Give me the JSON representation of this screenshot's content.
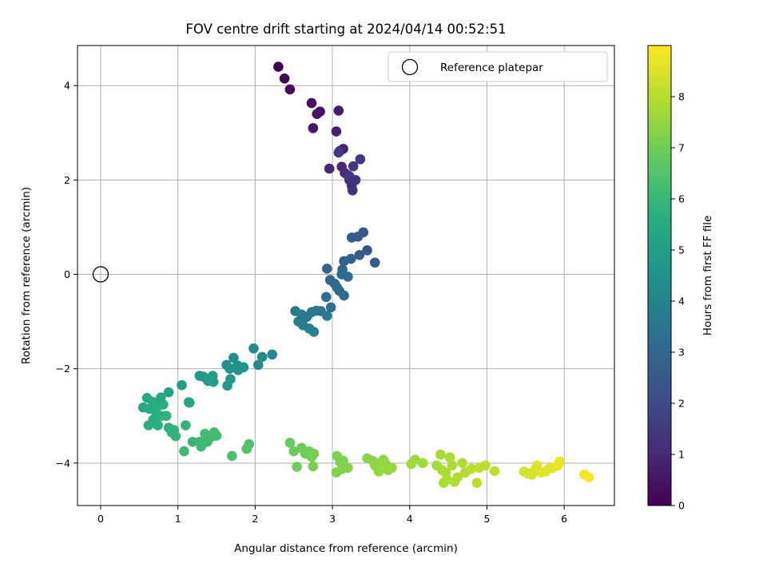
{
  "chart_data": {
    "type": "scatter",
    "title": "FOV centre drift starting at 2024/04/14 00:52:51",
    "xlabel": "Angular distance from reference (arcmin)",
    "ylabel": "Rotation from reference (arcmin)",
    "xlim": [
      -0.3,
      6.65
    ],
    "ylim": [
      -4.9,
      4.85
    ],
    "xticks": [
      0,
      1,
      2,
      3,
      4,
      5,
      6
    ],
    "yticks": [
      -4,
      -2,
      0,
      2,
      4
    ],
    "xtick_labels": [
      "0",
      "1",
      "2",
      "3",
      "4",
      "5",
      "6"
    ],
    "ytick_labels": [
      "−4",
      "−2",
      "0",
      "2",
      "4"
    ],
    "grid": true,
    "legend": {
      "placement": "top-right",
      "entries": [
        "Reference platepar"
      ]
    },
    "reference_point": {
      "x": 0,
      "y": 0,
      "label": "Reference platepar"
    },
    "colorbar": {
      "label": "Hours from first FF file",
      "colormap": "viridis",
      "range": [
        0,
        9
      ],
      "ticks": [
        0,
        1,
        2,
        3,
        4,
        5,
        6,
        7,
        8
      ],
      "tick_labels": [
        "0",
        "1",
        "2",
        "3",
        "4",
        "5",
        "6",
        "7",
        "8"
      ]
    },
    "series": [
      {
        "color_value": "hours",
        "points": [
          [
            2.3,
            4.4,
            0.0
          ],
          [
            2.38,
            4.15,
            0.1
          ],
          [
            2.45,
            3.92,
            0.2
          ],
          [
            2.73,
            3.63,
            0.35
          ],
          [
            2.8,
            3.4,
            0.45
          ],
          [
            2.84,
            3.45,
            0.5
          ],
          [
            2.75,
            3.1,
            0.6
          ],
          [
            3.08,
            3.47,
            0.7
          ],
          [
            3.05,
            3.03,
            0.8
          ],
          [
            3.1,
            2.62,
            0.9
          ],
          [
            3.14,
            2.66,
            0.95
          ],
          [
            2.96,
            2.24,
            1.0
          ],
          [
            3.12,
            2.28,
            1.05
          ],
          [
            3.16,
            2.15,
            1.1
          ],
          [
            3.2,
            2.1,
            1.15
          ],
          [
            3.22,
            2.0,
            1.2
          ],
          [
            3.25,
            1.88,
            1.25
          ],
          [
            3.26,
            1.78,
            1.3
          ],
          [
            3.3,
            2.0,
            1.35
          ],
          [
            3.27,
            2.29,
            1.4
          ],
          [
            3.36,
            2.44,
            1.45
          ],
          [
            3.22,
            2.08,
            1.5
          ],
          [
            3.08,
            2.58,
            1.55
          ],
          [
            3.45,
            0.51,
            2.4
          ],
          [
            3.4,
            0.89,
            2.5
          ],
          [
            3.33,
            0.8,
            2.55
          ],
          [
            3.25,
            0.78,
            2.6
          ],
          [
            3.35,
            0.41,
            2.65
          ],
          [
            3.55,
            0.25,
            2.7
          ],
          [
            3.15,
            0.28,
            2.75
          ],
          [
            3.24,
            0.33,
            2.8
          ],
          [
            3.13,
            0.1,
            2.85
          ],
          [
            2.93,
            0.12,
            2.9
          ],
          [
            2.97,
            -0.12,
            2.95
          ],
          [
            3.03,
            -0.2,
            3.0
          ],
          [
            3.06,
            -0.28,
            3.05
          ],
          [
            3.09,
            -0.35,
            3.1
          ],
          [
            3.15,
            -0.45,
            3.15
          ],
          [
            3.12,
            0.0,
            3.2
          ],
          [
            3.2,
            -0.05,
            3.25
          ],
          [
            2.92,
            -0.48,
            3.3
          ],
          [
            2.98,
            -0.7,
            3.4
          ],
          [
            2.85,
            -0.78,
            3.5
          ],
          [
            2.79,
            -0.77,
            3.55
          ],
          [
            2.73,
            -0.8,
            3.6
          ],
          [
            2.67,
            -0.9,
            3.65
          ],
          [
            2.93,
            -0.88,
            3.7
          ],
          [
            2.52,
            -0.78,
            3.75
          ],
          [
            2.6,
            -0.85,
            3.8
          ],
          [
            2.56,
            -1.0,
            3.85
          ],
          [
            2.62,
            -1.08,
            3.9
          ],
          [
            2.7,
            -1.15,
            3.95
          ],
          [
            2.76,
            -1.22,
            4.0
          ],
          [
            2.22,
            -1.7,
            4.2
          ],
          [
            2.09,
            -1.75,
            4.25
          ],
          [
            1.98,
            -1.57,
            4.3
          ],
          [
            2.04,
            -1.92,
            4.35
          ],
          [
            1.72,
            -1.77,
            4.45
          ],
          [
            1.77,
            -1.93,
            4.5
          ],
          [
            1.63,
            -1.92,
            4.55
          ],
          [
            1.67,
            -2.0,
            4.6
          ],
          [
            1.85,
            -1.97,
            4.65
          ],
          [
            1.78,
            -2.03,
            4.7
          ],
          [
            1.68,
            -2.22,
            4.75
          ],
          [
            1.64,
            -2.36,
            4.8
          ],
          [
            1.33,
            -2.17,
            4.85
          ],
          [
            1.28,
            -2.15,
            4.9
          ],
          [
            1.45,
            -2.15,
            4.95
          ],
          [
            1.46,
            -2.28,
            5.0
          ],
          [
            1.39,
            -2.26,
            5.05
          ],
          [
            1.05,
            -2.35,
            5.1
          ],
          [
            0.88,
            -2.5,
            5.2
          ],
          [
            1.15,
            -2.72,
            5.25
          ],
          [
            1.14,
            -2.71,
            5.3
          ],
          [
            0.78,
            -2.61,
            5.4
          ],
          [
            0.55,
            -2.82,
            5.45
          ],
          [
            0.6,
            -2.62,
            5.5
          ],
          [
            0.67,
            -2.7,
            5.52
          ],
          [
            0.63,
            -2.85,
            5.55
          ],
          [
            0.7,
            -2.8,
            5.57
          ],
          [
            0.75,
            -2.78,
            5.6
          ],
          [
            0.81,
            -2.76,
            5.62
          ],
          [
            0.72,
            -2.95,
            5.65
          ],
          [
            0.68,
            -3.08,
            5.67
          ],
          [
            0.62,
            -3.2,
            5.7
          ],
          [
            0.74,
            -3.2,
            5.72
          ],
          [
            0.78,
            -3.0,
            5.75
          ],
          [
            0.85,
            -3.0,
            5.78
          ],
          [
            0.88,
            -3.25,
            5.8
          ],
          [
            0.95,
            -3.3,
            5.82
          ],
          [
            0.92,
            -3.35,
            5.85
          ],
          [
            0.97,
            -3.43,
            5.88
          ],
          [
            1.1,
            -3.2,
            5.9
          ],
          [
            1.19,
            -3.55,
            6.0
          ],
          [
            1.08,
            -3.75,
            6.05
          ],
          [
            1.28,
            -3.55,
            6.1
          ],
          [
            1.3,
            -3.65,
            6.12
          ],
          [
            1.38,
            -3.55,
            6.15
          ],
          [
            1.35,
            -3.38,
            6.18
          ],
          [
            1.43,
            -3.45,
            6.2
          ],
          [
            1.47,
            -3.35,
            6.22
          ],
          [
            1.5,
            -3.42,
            6.25
          ],
          [
            1.7,
            -3.85,
            6.4
          ],
          [
            1.92,
            -3.6,
            6.5
          ],
          [
            1.89,
            -3.7,
            6.55
          ],
          [
            2.45,
            -3.57,
            6.9
          ],
          [
            2.5,
            -3.75,
            6.92
          ],
          [
            2.54,
            -4.08,
            6.95
          ],
          [
            2.6,
            -3.68,
            7.0
          ],
          [
            2.65,
            -3.8,
            7.02
          ],
          [
            2.7,
            -3.75,
            7.05
          ],
          [
            2.73,
            -3.87,
            7.07
          ],
          [
            2.76,
            -3.8,
            7.1
          ],
          [
            2.75,
            -4.07,
            7.12
          ],
          [
            3.06,
            -3.85,
            7.2
          ],
          [
            3.1,
            -3.98,
            7.22
          ],
          [
            3.14,
            -3.95,
            7.25
          ],
          [
            3.16,
            -4.08,
            7.27
          ],
          [
            3.05,
            -4.2,
            7.3
          ],
          [
            3.12,
            -4.13,
            7.32
          ],
          [
            3.2,
            -4.1,
            7.35
          ],
          [
            3.45,
            -3.9,
            7.4
          ],
          [
            3.52,
            -3.95,
            7.42
          ],
          [
            3.55,
            -4.05,
            7.45
          ],
          [
            3.58,
            -4.1,
            7.47
          ],
          [
            3.62,
            -4.0,
            7.5
          ],
          [
            3.66,
            -3.93,
            7.52
          ],
          [
            3.69,
            -4.02,
            7.55
          ],
          [
            3.6,
            -4.18,
            7.57
          ],
          [
            3.72,
            -4.15,
            7.6
          ],
          [
            3.77,
            -4.1,
            7.62
          ],
          [
            4.02,
            -4.02,
            7.7
          ],
          [
            4.07,
            -3.93,
            7.72
          ],
          [
            4.17,
            -4.0,
            7.75
          ],
          [
            4.35,
            -4.05,
            7.8
          ],
          [
            4.4,
            -3.82,
            7.82
          ],
          [
            4.42,
            -4.15,
            7.85
          ],
          [
            4.47,
            -4.2,
            7.87
          ],
          [
            4.52,
            -3.88,
            7.88
          ],
          [
            4.55,
            -4.05,
            7.9
          ],
          [
            4.48,
            -4.35,
            7.92
          ],
          [
            4.44,
            -4.42,
            7.93
          ],
          [
            4.58,
            -4.4,
            7.95
          ],
          [
            4.62,
            -4.3,
            7.97
          ],
          [
            4.68,
            -4.0,
            7.98
          ],
          [
            4.72,
            -4.2,
            8.0
          ],
          [
            4.8,
            -4.12,
            8.05
          ],
          [
            4.87,
            -4.42,
            8.08
          ],
          [
            4.9,
            -4.1,
            8.1
          ],
          [
            4.98,
            -4.05,
            8.12
          ],
          [
            5.1,
            -4.17,
            8.15
          ],
          [
            5.48,
            -4.18,
            8.4
          ],
          [
            5.53,
            -4.22,
            8.45
          ],
          [
            5.58,
            -4.25,
            8.47
          ],
          [
            5.62,
            -4.15,
            8.5
          ],
          [
            5.65,
            -4.05,
            8.52
          ],
          [
            5.7,
            -4.2,
            8.55
          ],
          [
            5.76,
            -4.18,
            8.6
          ],
          [
            5.8,
            -4.12,
            8.62
          ],
          [
            5.85,
            -4.1,
            8.65
          ],
          [
            5.94,
            -3.97,
            8.7
          ],
          [
            5.92,
            -4.05,
            8.72
          ],
          [
            6.26,
            -4.24,
            8.9
          ],
          [
            6.32,
            -4.3,
            8.95
          ]
        ]
      }
    ]
  }
}
